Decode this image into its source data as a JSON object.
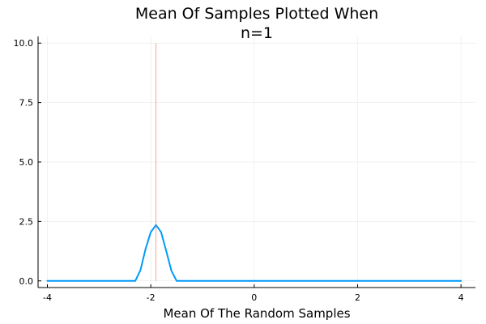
{
  "chart_data": {
    "type": "line",
    "title": [
      "Mean Of Samples Plotted When",
      "n=1"
    ],
    "xlabel": "Mean Of The Random Samples",
    "ylabel": "",
    "xlim": [
      -4.0,
      4.0
    ],
    "ylim": [
      0.0,
      10.0
    ],
    "xticks": [
      -4,
      -2,
      0,
      2,
      4
    ],
    "xtick_labels": [
      "-4",
      "-2",
      "0",
      "2",
      "4"
    ],
    "yticks": [
      0,
      2.5,
      5,
      7.5,
      10
    ],
    "ytick_labels": [
      "0.0",
      "2.5",
      "5.0",
      "7.5",
      "10.0"
    ],
    "grid": true,
    "legend": "none",
    "series": [
      {
        "kind": "line",
        "color": "#009AFA",
        "x": [
          -4.0,
          -2.3,
          -2.2,
          -2.1,
          -2.0,
          -1.9,
          -1.8,
          -1.7,
          -1.6,
          -1.5,
          4.0
        ],
        "y": [
          0.0,
          0.0,
          0.45,
          1.35,
          2.05,
          2.35,
          2.05,
          1.25,
          0.42,
          0.0,
          0.0
        ]
      },
      {
        "kind": "vline",
        "color": "#E26F46",
        "x": -1.9,
        "y": [
          0.0,
          10.0
        ]
      }
    ]
  }
}
